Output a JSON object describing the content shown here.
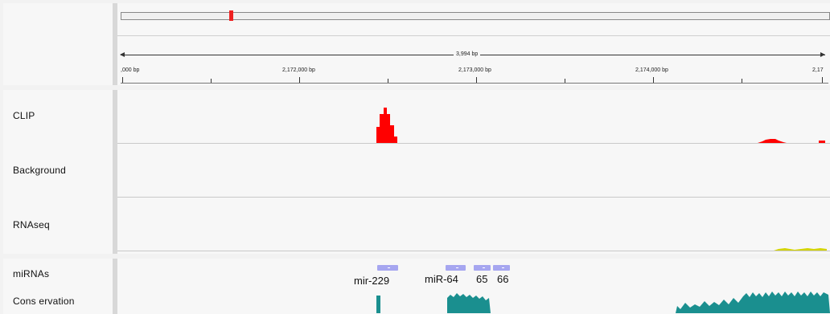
{
  "ruler": {
    "span_label": "3,994 bp",
    "positions": [
      {
        "label": ",000 bp"
      },
      {
        "label": "2,172,000 bp"
      },
      {
        "label": "2,173,000 bp"
      },
      {
        "label": "2,174,000 bp"
      },
      {
        "label": "2,17"
      }
    ]
  },
  "tracks": [
    {
      "name": "CLIP",
      "color": "#ff0000"
    },
    {
      "name": "Background"
    },
    {
      "name": "RNAseq",
      "color": "#d4d400"
    }
  ],
  "annotation_tracks": [
    {
      "name": "miRNAs",
      "color": "#a6a6f0"
    },
    {
      "name": "Cons ervation",
      "color": "#1a8f8f"
    }
  ],
  "mirnas": [
    {
      "label": "mir-229"
    },
    {
      "label": "miR-64"
    },
    {
      "label": "65"
    },
    {
      "label": "66"
    }
  ],
  "colors": {
    "clip": "#ff0000",
    "rnaseq": "#d4d400",
    "mirna": "#a6a6f0",
    "conservation": "#1a8f8f",
    "ideogram_marker": "#ee2222"
  }
}
